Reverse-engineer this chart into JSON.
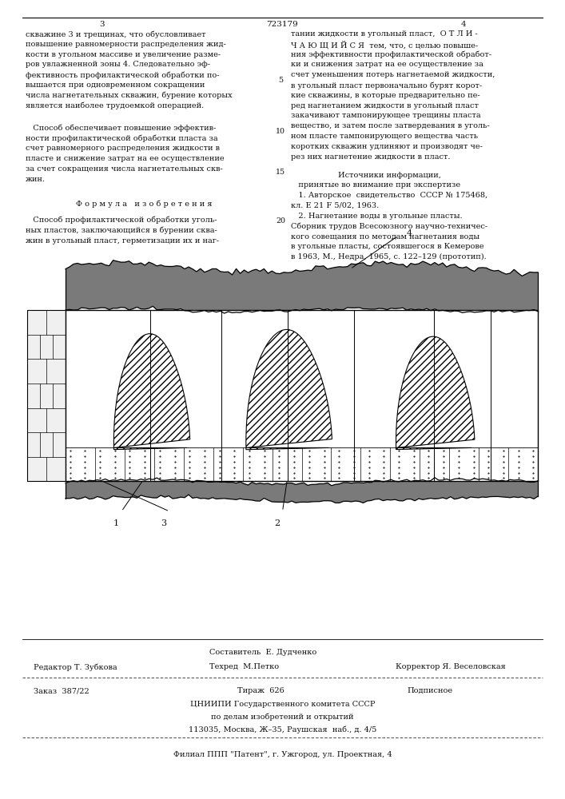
{
  "page_width": 7.07,
  "page_height": 10.0,
  "bg_color": "#ffffff",
  "patent_number": "723179",
  "col_left_page": "3",
  "col_right_page": "4",
  "left_col_lines": [
    "скважине 3 и трещинах, что обусловливает",
    "повышение равномерности распределения жид-",
    "кости в угольном массиве и увеличение разме-",
    "ров увлажненной зоны 4. Следовательно эф-",
    "фективность профилактической обработки по-",
    "вышается при одновременном сокращении",
    "числа нагнетательных скважин, бурение которых",
    "является наиболее трудоемкой операцией."
  ],
  "left_col_para2": [
    "   Способ обеспечивает повышение эффектив-",
    "ности профилактической обработки пласта за",
    "счет равномерного распределения жидкости в",
    "пласте и снижение затрат на ее осуществление",
    "за счет сокращения числа нагнетательных скв-",
    "жин."
  ],
  "formula_header": "Ф о р м у л а   и з о б р е т е н и я",
  "formula_lines": [
    "   Способ профилактической обработки уголь-",
    "ных пластов, заключающийся в бурении сква-",
    "жин в угольный пласт, герметизации их и наг-"
  ],
  "right_col_lines": [
    "тании жидкости в угольный пласт,  О Т Л И -",
    "Ч А Ю Щ И Й С Я  тем, что, с целью повыше-",
    "ния эффективности профилактической обработ-",
    "ки и снижения затрат на ее осуществление за",
    "счет уменьшения потерь нагнетаемой жидкости,",
    "в угольный пласт первоначально бурят корот-",
    "кие скважины, в которые предварительно пе-",
    "ред нагнетанием жидкости в угольный пласт",
    "закачивают тампонирующее трещины пласта",
    "вещество, и затем после затвердевания в уголь-",
    "ном пласте тампонирующего вещества часть",
    "коротких скважин удлиняют и производят че-",
    "рез них нагнетение жидкости в пласт."
  ],
  "sources_header": "Источники информации,",
  "sources_intro": "   принятые во внимание при экспертизе",
  "source1": "   1. Авторское  свидетельство  СССР № 175468,",
  "source1b": "кл. Е 21 F 5/02, 1963.",
  "source2": "   2. Нагнетание воды в угольные пласты.",
  "source2b": "Сборник трудов Всесоюзного научно-техничес-",
  "source2c": "кого совещания по методам нагнетания воды",
  "source2d": "в угольные пласты, состоявшегося в Кемерове",
  "source2e": "в 1963, М., Недра, 1965, с. 122–129 (прототип).",
  "footer_line1_left": "Редактор Т. Зубкова",
  "footer_line1_center": "Техред  М.Петко",
  "footer_line1_center_top": "Составитель  Е. Дудченко",
  "footer_line1_right": "Корректор Я. Веселовская",
  "footer_line2_left": "Заказ  387/22",
  "footer_line2_center": "Тираж  626",
  "footer_line2_right": "Подписное",
  "footer_line3": "ЦНИИПИ Государственного комитета СССР",
  "footer_line4": "по делам изобретений и открытий",
  "footer_line5": "113035, Москва, Ж–35, Раушская  наб., д. 4/5",
  "footer_last": "Филиал ППП \"Патент\", г. Ужгород, ул. Проектная, 4"
}
